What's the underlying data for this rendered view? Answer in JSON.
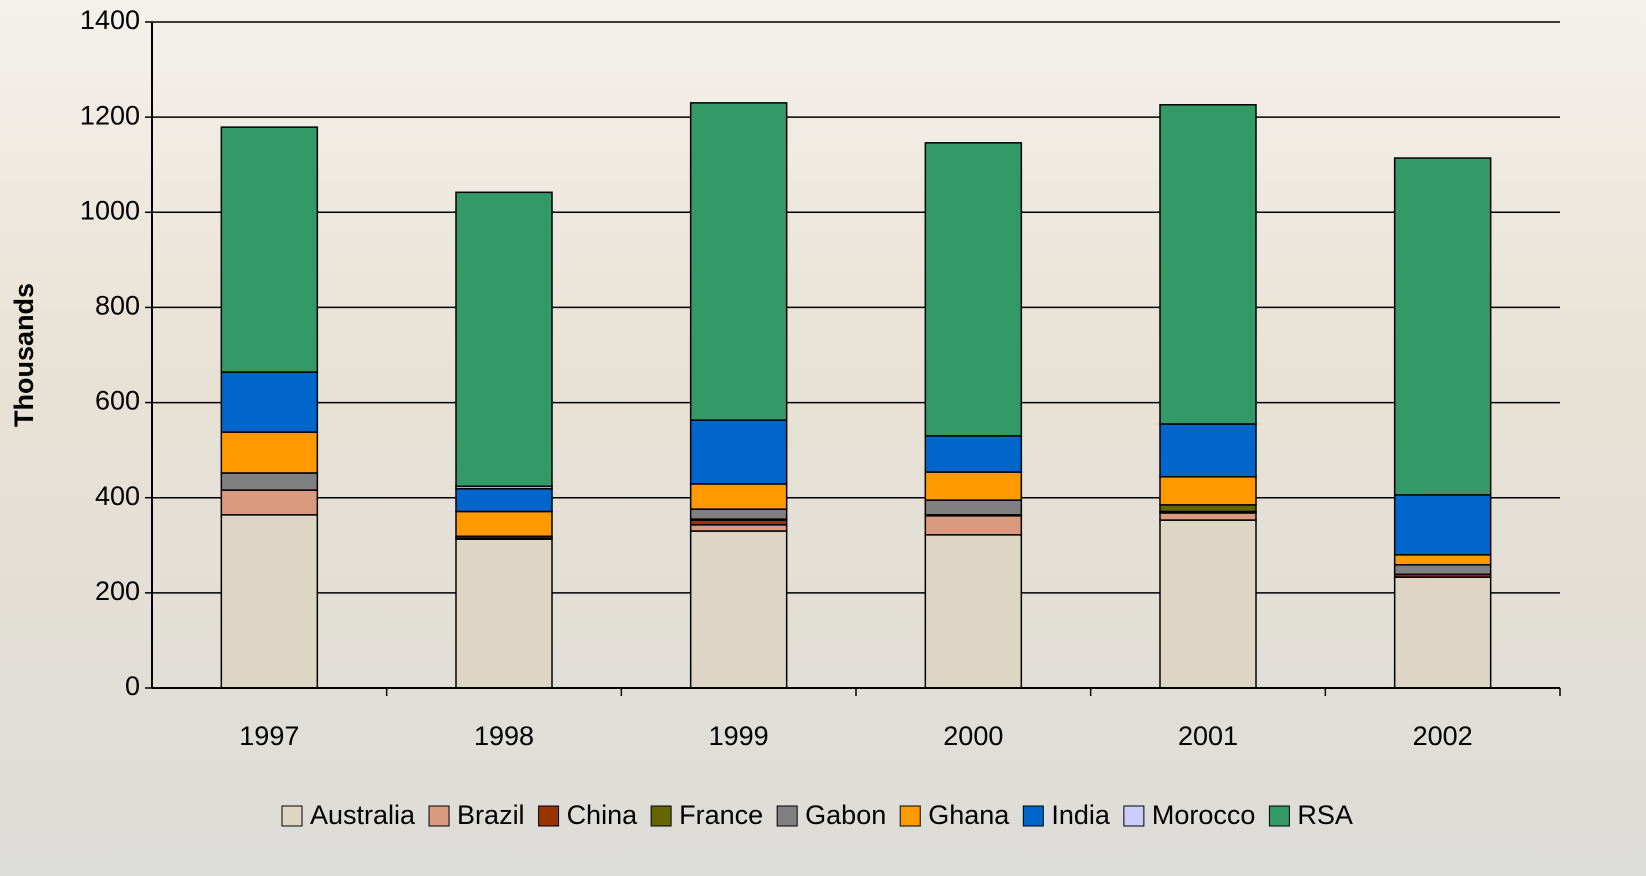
{
  "chart_data": {
    "type": "stacked_bar",
    "y_label": "Thousands",
    "categories": [
      "1997",
      "1998",
      "1999",
      "2000",
      "2001",
      "2002"
    ],
    "series": [
      {
        "name": "Australia",
        "color": "#ddd6c4",
        "values": [
          364,
          313,
          330,
          322,
          353,
          233
        ]
      },
      {
        "name": "Brazil",
        "color": "#d99a80",
        "values": [
          52,
          2,
          13,
          40,
          15,
          0
        ]
      },
      {
        "name": "China",
        "color": "#993300",
        "values": [
          0,
          4,
          10,
          2,
          3,
          6
        ]
      },
      {
        "name": "France",
        "color": "#666600",
        "values": [
          0,
          0,
          2,
          0,
          14,
          0
        ]
      },
      {
        "name": "Gabon",
        "color": "#808080",
        "values": [
          36,
          0,
          21,
          31,
          0,
          20
        ]
      },
      {
        "name": "Ghana",
        "color": "#ff9900",
        "values": [
          86,
          52,
          53,
          59,
          59,
          21
        ]
      },
      {
        "name": "India",
        "color": "#0066cc",
        "values": [
          126,
          48,
          134,
          76,
          111,
          126
        ]
      },
      {
        "name": "Morocco",
        "color": "#ccccff",
        "values": [
          0,
          5,
          0,
          0,
          0,
          0
        ]
      },
      {
        "name": "RSA",
        "color": "#339966",
        "values": [
          515,
          618,
          667,
          616,
          671,
          708
        ]
      }
    ],
    "ylim": [
      0,
      1400
    ],
    "yticks": [
      0,
      200,
      400,
      600,
      800,
      1000,
      1200,
      1400
    ],
    "grid": true,
    "legend": "bottom"
  }
}
